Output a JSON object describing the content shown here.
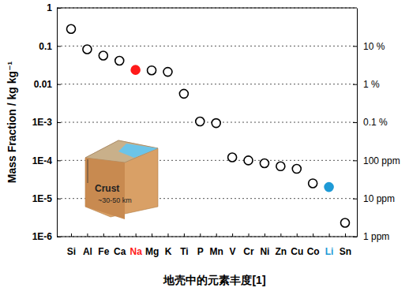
{
  "chart_data": {
    "type": "scatter",
    "title": "地壳中的元素丰度[1]",
    "y_label": "Mass Fraction  /  kg kg⁻¹",
    "categories": [
      "Si",
      "Al",
      "Fe",
      "Ca",
      "Na",
      "Mg",
      "K",
      "Ti",
      "P",
      "Mn",
      "V",
      "Cr",
      "Ni",
      "Zn",
      "Cu",
      "Co",
      "Li",
      "Sn"
    ],
    "values": [
      0.28,
      0.082,
      0.056,
      0.041,
      0.0236,
      0.023,
      0.021,
      0.0056,
      0.00105,
      0.00095,
      0.00012,
      0.0001,
      8.4e-05,
      7e-05,
      6e-05,
      2.5e-05,
      2e-05,
      2.3e-06
    ],
    "colors": [
      "#ffffff",
      "#ffffff",
      "#ffffff",
      "#ffffff",
      "#ff1a1a",
      "#ffffff",
      "#ffffff",
      "#ffffff",
      "#ffffff",
      "#ffffff",
      "#ffffff",
      "#ffffff",
      "#ffffff",
      "#ffffff",
      "#ffffff",
      "#ffffff",
      "#1e9ad6",
      "#ffffff"
    ],
    "marker": "circle",
    "log": "y",
    "grid": true,
    "ylim": [
      1e-06,
      1
    ],
    "yticks": [
      1,
      0.1,
      0.01,
      {
        "value": 0.001,
        "label": "1E-3"
      },
      {
        "value": 0.0001,
        "label": "1E-4"
      },
      {
        "value": 1e-05,
        "label": "1E-5"
      },
      {
        "value": 1e-06,
        "label": "1E-6"
      }
    ],
    "y2lim": [
      1e-06,
      1
    ],
    "y2ticks": [
      {
        "value": 0.1,
        "label": "10 %"
      },
      {
        "value": 0.01,
        "label": "1 %"
      },
      {
        "value": 0.001,
        "label": "0.1 %"
      },
      {
        "value": 0.0001,
        "label": "100 ppm"
      },
      {
        "value": 1e-05,
        "label": "10 ppm"
      },
      {
        "value": 1e-06,
        "label": "1 ppm"
      }
    ],
    "annotations": [
      "Crust",
      "~30-50 km"
    ]
  }
}
